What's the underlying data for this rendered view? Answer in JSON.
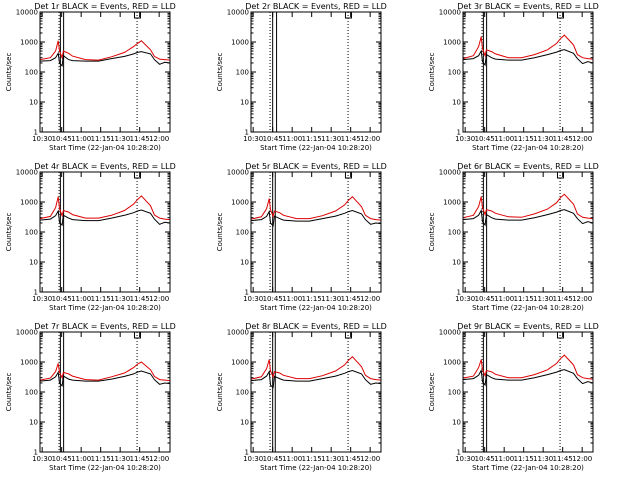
{
  "figure": {
    "colors": {
      "background": "#ffffff",
      "axes": "#000000",
      "events": "#000000",
      "lld": "#dd0000"
    },
    "line_color_names": {
      "events": "BLACK",
      "lld": "RED"
    }
  },
  "chart_data": [
    {
      "type": "line",
      "title": "Det 1r BLACK = Events, RED = LLD",
      "xlabel": "Start Time (22-Jan-04 10:28:20)",
      "ylabel": "Counts/sec",
      "x_unit": "minutes after 10:28:20",
      "xlim": [
        0,
        100
      ],
      "ylim": [
        1,
        10000
      ],
      "yscale": "log",
      "x_ticks": [
        "10:30",
        "10:45",
        "11:00",
        "11:15",
        "11:30",
        "11:45",
        "12:00"
      ],
      "y_ticks": [
        "1",
        "10",
        "100",
        "1000",
        "10000"
      ],
      "vlines_solid_at": [
        "10:44",
        "10:46:30"
      ],
      "vlines_dotted_at": [
        "10:43",
        "11:43"
      ],
      "series": [
        {
          "name": "Events",
          "x": [
            0,
            8,
            12,
            14,
            15,
            17,
            18,
            22,
            25,
            35,
            45,
            55,
            65,
            72,
            75,
            78,
            85,
            88,
            92,
            96,
            100
          ],
          "values": [
            230,
            240,
            300,
            420,
            200,
            160,
            350,
            260,
            240,
            230,
            230,
            280,
            330,
            400,
            450,
            480,
            400,
            260,
            180,
            210,
            200
          ]
        },
        {
          "name": "LLD",
          "x": [
            0,
            8,
            12,
            14,
            15,
            17,
            18,
            22,
            25,
            35,
            45,
            55,
            65,
            72,
            75,
            78,
            85,
            88,
            92,
            96,
            100
          ],
          "values": [
            260,
            300,
            500,
            1100,
            500,
            300,
            500,
            420,
            340,
            260,
            250,
            320,
            450,
            700,
            900,
            1100,
            550,
            330,
            270,
            260,
            250
          ]
        }
      ]
    },
    {
      "type": "line",
      "title": "Det 2r BLACK = Events, RED = LLD",
      "xlabel": "Start Time (22-Jan-04 10:28:20)",
      "ylabel": "Counts/sec",
      "x_unit": "minutes after 10:28:20",
      "xlim": [
        0,
        100
      ],
      "ylim": [
        1,
        10000
      ],
      "yscale": "log",
      "x_ticks": [
        "10:30",
        "10:45",
        "11:00",
        "11:15",
        "11:30",
        "11:45",
        "12:00"
      ],
      "y_ticks": [
        "1",
        "10",
        "100",
        "1000",
        "10000"
      ],
      "vlines_solid_at": [
        "10:45",
        "10:48"
      ],
      "vlines_dotted_at": [
        "10:43",
        "11:43"
      ],
      "series": []
    },
    {
      "type": "line",
      "title": "Det 3r BLACK = Events, RED = LLD",
      "xlabel": "Start Time (22-Jan-04 10:28:20)",
      "ylabel": "Counts/sec",
      "x_unit": "minutes after 10:28:20",
      "xlim": [
        0,
        100
      ],
      "ylim": [
        1,
        10000
      ],
      "yscale": "log",
      "x_ticks": [
        "10:30",
        "10:45",
        "11:00",
        "11:15",
        "11:30",
        "11:45",
        "12:00"
      ],
      "y_ticks": [
        "1",
        "10",
        "100",
        "1000",
        "10000"
      ],
      "vlines_solid_at": [
        "10:44",
        "10:46:30"
      ],
      "vlines_dotted_at": [
        "10:43",
        "11:43"
      ],
      "series": [
        {
          "name": "Events",
          "x": [
            0,
            8,
            12,
            14,
            15,
            17,
            18,
            22,
            25,
            35,
            45,
            55,
            65,
            72,
            75,
            78,
            85,
            88,
            92,
            96,
            100
          ],
          "values": [
            260,
            280,
            350,
            500,
            220,
            170,
            380,
            300,
            270,
            250,
            250,
            300,
            380,
            460,
            520,
            560,
            420,
            280,
            190,
            220,
            200
          ]
        },
        {
          "name": "LLD",
          "x": [
            0,
            8,
            12,
            14,
            15,
            17,
            18,
            22,
            25,
            35,
            45,
            55,
            65,
            72,
            75,
            78,
            85,
            88,
            92,
            96,
            100
          ],
          "values": [
            280,
            350,
            700,
            1500,
            600,
            350,
            550,
            480,
            400,
            300,
            300,
            380,
            550,
            900,
            1300,
            1700,
            800,
            380,
            300,
            280,
            270
          ]
        }
      ]
    },
    {
      "type": "line",
      "title": "Det 4r BLACK = Events, RED = LLD",
      "xlabel": "Start Time (22-Jan-04 10:28:20)",
      "ylabel": "Counts/sec",
      "x_unit": "minutes after 10:28:20",
      "xlim": [
        0,
        100
      ],
      "ylim": [
        1,
        10000
      ],
      "yscale": "log",
      "x_ticks": [
        "10:30",
        "10:45",
        "11:00",
        "11:15",
        "11:30",
        "11:45",
        "12:00"
      ],
      "y_ticks": [
        "1",
        "10",
        "100",
        "1000",
        "10000"
      ],
      "vlines_solid_at": [
        "10:44",
        "10:46:30"
      ],
      "vlines_dotted_at": [
        "10:43",
        "11:43"
      ],
      "series": [
        {
          "name": "Events",
          "x": [
            0,
            8,
            12,
            14,
            15,
            17,
            18,
            22,
            25,
            35,
            45,
            55,
            65,
            72,
            75,
            78,
            85,
            88,
            92,
            96,
            100
          ],
          "values": [
            250,
            270,
            350,
            500,
            210,
            170,
            360,
            290,
            260,
            240,
            240,
            290,
            360,
            440,
            500,
            540,
            420,
            270,
            180,
            210,
            200
          ]
        },
        {
          "name": "LLD",
          "x": [
            0,
            8,
            12,
            14,
            15,
            17,
            18,
            22,
            25,
            35,
            45,
            55,
            65,
            72,
            75,
            78,
            85,
            88,
            92,
            96,
            100
          ],
          "values": [
            280,
            330,
            650,
            1500,
            600,
            350,
            520,
            460,
            380,
            290,
            290,
            360,
            520,
            850,
            1200,
            1600,
            750,
            370,
            290,
            270,
            260
          ]
        }
      ]
    },
    {
      "type": "line",
      "title": "Det 5r BLACK = Events, RED = LLD",
      "xlabel": "Start Time (22-Jan-04 10:28:20)",
      "ylabel": "Counts/sec",
      "x_unit": "minutes after 10:28:20",
      "xlim": [
        0,
        100
      ],
      "ylim": [
        1,
        10000
      ],
      "yscale": "log",
      "x_ticks": [
        "10:30",
        "10:45",
        "11:00",
        "11:15",
        "11:30",
        "11:45",
        "12:00"
      ],
      "y_ticks": [
        "1",
        "10",
        "100",
        "1000",
        "10000"
      ],
      "vlines_solid_at": [
        "10:45",
        "10:47"
      ],
      "vlines_dotted_at": [
        "10:43",
        "11:43"
      ],
      "series": [
        {
          "name": "Events",
          "x": [
            0,
            8,
            12,
            14,
            15,
            17,
            18,
            22,
            25,
            35,
            45,
            55,
            65,
            72,
            75,
            78,
            85,
            88,
            92,
            96,
            100
          ],
          "values": [
            240,
            260,
            330,
            480,
            200,
            160,
            340,
            280,
            250,
            230,
            230,
            280,
            340,
            420,
            480,
            520,
            400,
            260,
            180,
            200,
            190
          ]
        },
        {
          "name": "LLD",
          "x": [
            0,
            8,
            12,
            14,
            15,
            17,
            18,
            22,
            25,
            35,
            45,
            55,
            65,
            72,
            75,
            78,
            85,
            88,
            92,
            96,
            100
          ],
          "values": [
            270,
            320,
            600,
            1300,
            550,
            330,
            500,
            440,
            360,
            280,
            280,
            350,
            500,
            800,
            1150,
            1500,
            700,
            360,
            280,
            260,
            250
          ]
        }
      ]
    },
    {
      "type": "line",
      "title": "Det 6r BLACK = Events, RED = LLD",
      "xlabel": "Start Time (22-Jan-04 10:28:20)",
      "ylabel": "Counts/sec",
      "x_unit": "minutes after 10:28:20",
      "xlim": [
        0,
        100
      ],
      "ylim": [
        1,
        10000
      ],
      "yscale": "log",
      "x_ticks": [
        "10:30",
        "10:45",
        "11:00",
        "11:15",
        "11:30",
        "11:45",
        "12:00"
      ],
      "y_ticks": [
        "1",
        "10",
        "100",
        "1000",
        "10000"
      ],
      "vlines_solid_at": [
        "10:44",
        "10:46:30"
      ],
      "vlines_dotted_at": [
        "10:43",
        "11:43"
      ],
      "series": [
        {
          "name": "Events",
          "x": [
            0,
            8,
            12,
            14,
            15,
            17,
            18,
            22,
            25,
            35,
            45,
            55,
            65,
            72,
            75,
            78,
            85,
            88,
            92,
            96,
            100
          ],
          "values": [
            260,
            280,
            360,
            520,
            220,
            170,
            380,
            300,
            270,
            250,
            250,
            300,
            380,
            460,
            520,
            560,
            420,
            280,
            190,
            220,
            200
          ]
        },
        {
          "name": "LLD",
          "x": [
            0,
            8,
            12,
            14,
            15,
            17,
            18,
            22,
            25,
            35,
            45,
            55,
            65,
            72,
            75,
            78,
            85,
            88,
            92,
            96,
            100
          ],
          "values": [
            300,
            360,
            700,
            1500,
            650,
            380,
            560,
            500,
            420,
            320,
            310,
            400,
            580,
            950,
            1400,
            1800,
            850,
            400,
            310,
            290,
            280
          ]
        }
      ]
    },
    {
      "type": "line",
      "title": "Det 7r BLACK = Events, RED = LLD",
      "xlabel": "Start Time (22-Jan-04 10:28:20)",
      "ylabel": "Counts/sec",
      "x_unit": "minutes after 10:28:20",
      "xlim": [
        0,
        100
      ],
      "ylim": [
        1,
        10000
      ],
      "yscale": "log",
      "x_ticks": [
        "10:30",
        "10:45",
        "11:00",
        "11:15",
        "11:30",
        "11:45",
        "12:00"
      ],
      "y_ticks": [
        "1",
        "10",
        "100",
        "1000",
        "10000"
      ],
      "vlines_solid_at": [
        "10:44",
        "10:46:30"
      ],
      "vlines_dotted_at": [
        "10:43",
        "11:43"
      ],
      "series": [
        {
          "name": "Events",
          "x": [
            0,
            8,
            12,
            14,
            15,
            17,
            18,
            22,
            25,
            35,
            45,
            55,
            65,
            72,
            75,
            78,
            85,
            88,
            92,
            96,
            100
          ],
          "values": [
            230,
            250,
            320,
            450,
            200,
            160,
            340,
            270,
            250,
            230,
            230,
            270,
            330,
            400,
            460,
            500,
            400,
            260,
            180,
            200,
            190
          ]
        },
        {
          "name": "LLD",
          "x": [
            0,
            8,
            12,
            14,
            15,
            17,
            18,
            22,
            25,
            35,
            45,
            55,
            65,
            72,
            75,
            78,
            85,
            88,
            92,
            96,
            100
          ],
          "values": [
            250,
            290,
            480,
            900,
            450,
            300,
            450,
            400,
            340,
            260,
            250,
            320,
            430,
            650,
            850,
            1000,
            550,
            330,
            260,
            250,
            240
          ]
        }
      ]
    },
    {
      "type": "line",
      "title": "Det 8r BLACK = Events, RED = LLD",
      "xlabel": "Start Time (22-Jan-04 10:28:20)",
      "ylabel": "Counts/sec",
      "x_unit": "minutes after 10:28:20",
      "xlim": [
        0,
        100
      ],
      "ylim": [
        1,
        10000
      ],
      "yscale": "log",
      "x_ticks": [
        "10:30",
        "10:45",
        "11:00",
        "11:15",
        "11:30",
        "11:45",
        "12:00"
      ],
      "y_ticks": [
        "1",
        "10",
        "100",
        "1000",
        "10000"
      ],
      "vlines_solid_at": [
        "10:45",
        "10:47"
      ],
      "vlines_dotted_at": [
        "10:43",
        "11:43"
      ],
      "series": [
        {
          "name": "Events",
          "x": [
            0,
            8,
            12,
            14,
            15,
            17,
            18,
            22,
            25,
            35,
            45,
            55,
            65,
            72,
            75,
            78,
            85,
            88,
            92,
            96,
            100
          ],
          "values": [
            240,
            260,
            340,
            480,
            170,
            140,
            330,
            280,
            250,
            230,
            230,
            280,
            340,
            420,
            480,
            520,
            400,
            260,
            180,
            200,
            190
          ]
        },
        {
          "name": "LLD",
          "x": [
            0,
            8,
            12,
            14,
            15,
            17,
            18,
            22,
            25,
            35,
            45,
            55,
            65,
            72,
            75,
            78,
            85,
            88,
            92,
            96,
            100
          ],
          "values": [
            270,
            320,
            600,
            1200,
            500,
            320,
            480,
            430,
            360,
            280,
            280,
            350,
            500,
            800,
            1150,
            1500,
            700,
            360,
            280,
            260,
            250
          ]
        }
      ]
    },
    {
      "type": "line",
      "title": "Det 9r BLACK = Events, RED = LLD",
      "xlabel": "Start Time (22-Jan-04 10:28:20)",
      "ylabel": "Counts/sec",
      "x_unit": "minutes after 10:28:20",
      "xlim": [
        0,
        100
      ],
      "ylim": [
        1,
        10000
      ],
      "yscale": "log",
      "x_ticks": [
        "10:30",
        "10:45",
        "11:00",
        "11:15",
        "11:30",
        "11:45",
        "12:00"
      ],
      "y_ticks": [
        "1",
        "10",
        "100",
        "1000",
        "10000"
      ],
      "vlines_solid_at": [
        "10:44",
        "10:46:30"
      ],
      "vlines_dotted_at": [
        "10:43",
        "11:43"
      ],
      "series": [
        {
          "name": "Events",
          "x": [
            0,
            8,
            12,
            14,
            15,
            17,
            18,
            22,
            25,
            35,
            45,
            55,
            65,
            72,
            75,
            78,
            85,
            88,
            92,
            96,
            100
          ],
          "values": [
            260,
            280,
            360,
            520,
            220,
            170,
            380,
            300,
            270,
            250,
            250,
            300,
            380,
            460,
            520,
            560,
            420,
            280,
            190,
            220,
            200
          ]
        },
        {
          "name": "LLD",
          "x": [
            0,
            8,
            12,
            14,
            15,
            17,
            18,
            22,
            25,
            35,
            45,
            55,
            65,
            72,
            75,
            78,
            85,
            88,
            92,
            96,
            100
          ],
          "values": [
            290,
            340,
            650,
            1200,
            550,
            350,
            520,
            470,
            390,
            300,
            300,
            380,
            550,
            900,
            1300,
            1700,
            800,
            380,
            300,
            280,
            270
          ]
        }
      ]
    }
  ]
}
